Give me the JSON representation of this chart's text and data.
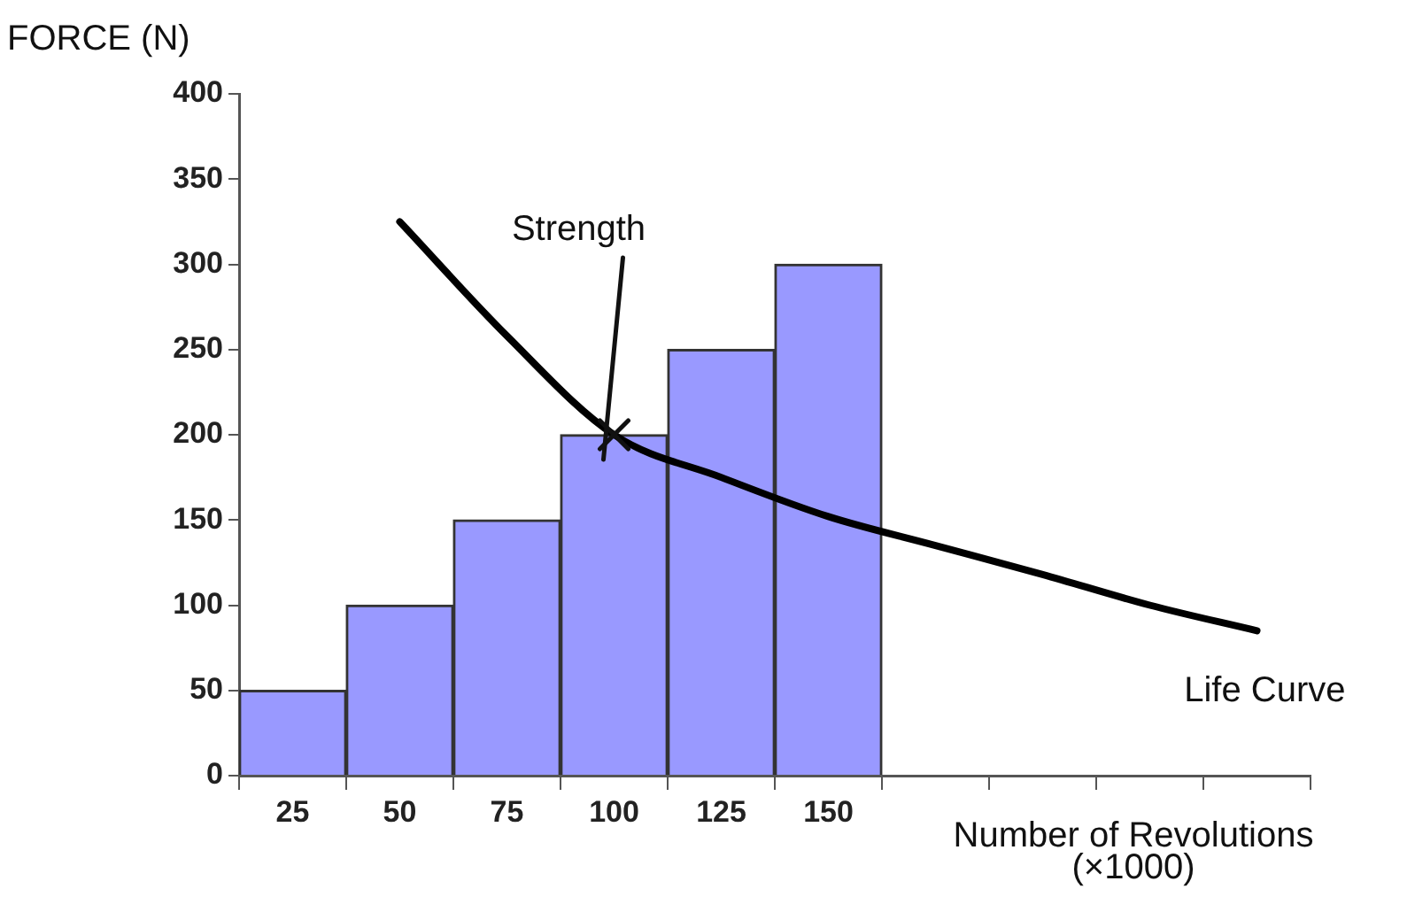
{
  "chart_data": {
    "type": "bar",
    "xlabel": "Number of Revolutions (×1000)",
    "ylabel": "FORCE (N)",
    "categories": [
      "25",
      "50",
      "75",
      "100",
      "125",
      "150",
      null,
      null,
      null,
      null
    ],
    "series": [
      {
        "color": "#9999ff",
        "values": [
          50,
          100,
          150,
          200,
          250,
          300,
          null,
          null,
          null,
          null
        ]
      },
      {
        "type": "line",
        "name": "Life Curve",
        "color": "#000000",
        "values": [
          null,
          325,
          258,
          200,
          175,
          152,
          135,
          118,
          100,
          85
        ]
      }
    ],
    "annotations": [
      "Strength"
    ],
    "ylim": [
      0,
      400
    ],
    "yticks": [
      0,
      50,
      100,
      150,
      200,
      250,
      300,
      350,
      400
    ],
    "grid": false,
    "legend": false,
    "marker": "none",
    "line_style": "solid"
  }
}
